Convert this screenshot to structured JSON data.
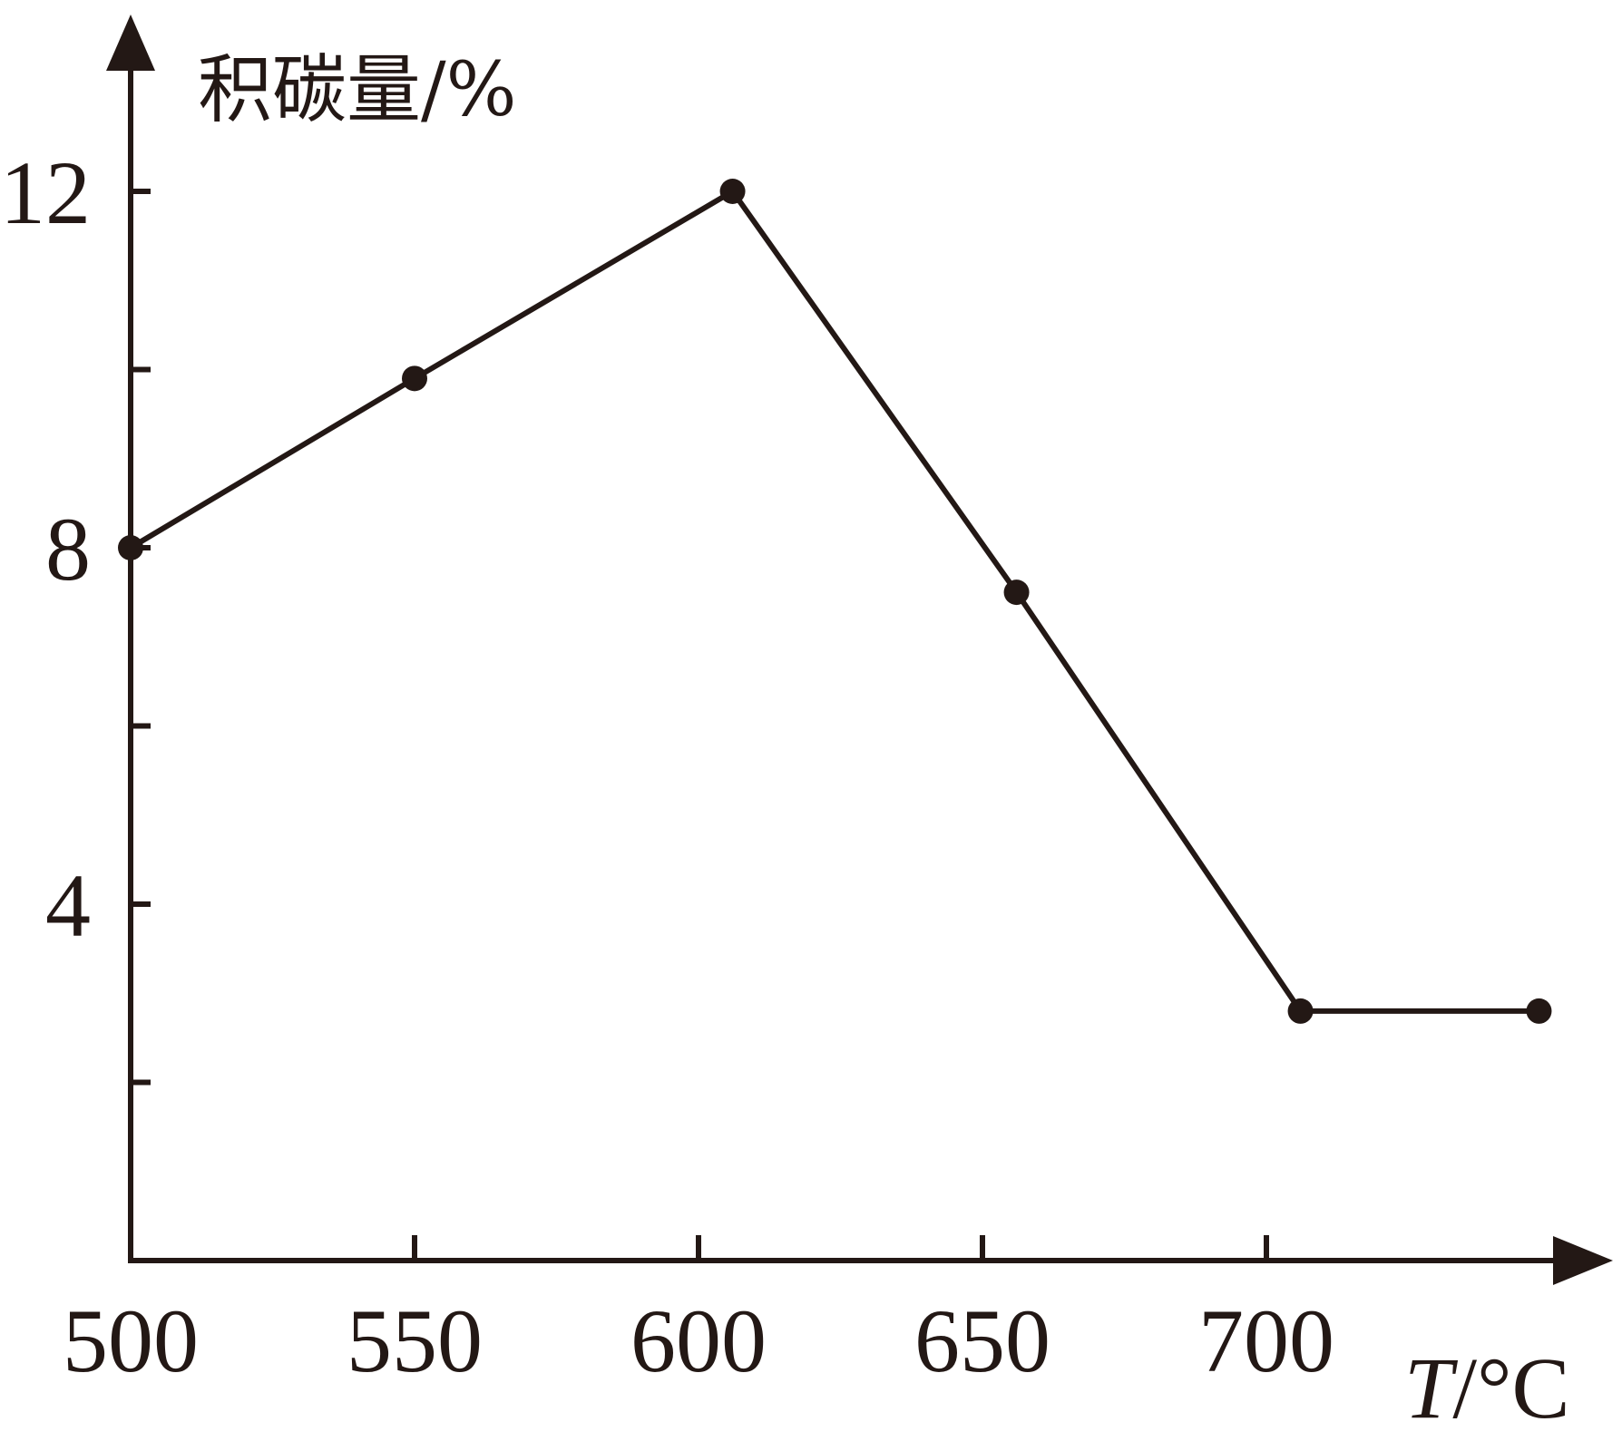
{
  "chart_data": {
    "type": "line",
    "title": "",
    "xlabel": "T/°C",
    "xlabel_italic_part": "T",
    "xlabel_rest": "/°C",
    "ylabel": "积碳量/%",
    "xlim": [
      500,
      760
    ],
    "ylim": [
      0,
      14
    ],
    "x_ticks": [
      500,
      550,
      600,
      650,
      700
    ],
    "x_tick_labels": [
      "500",
      "550",
      "600",
      "650",
      "700"
    ],
    "y_ticks": [
      2,
      4,
      6,
      8,
      10,
      12
    ],
    "y_tick_labels": [
      "",
      "4",
      "",
      "8",
      "",
      "12"
    ],
    "grid": false,
    "series": [
      {
        "x": [
          500,
          550,
          606,
          656,
          706,
          748
        ],
        "y": [
          8.0,
          9.9,
          12.0,
          7.5,
          2.8,
          2.8
        ]
      }
    ],
    "colors": {
      "ink": "#231815",
      "background": "#ffffff"
    }
  }
}
